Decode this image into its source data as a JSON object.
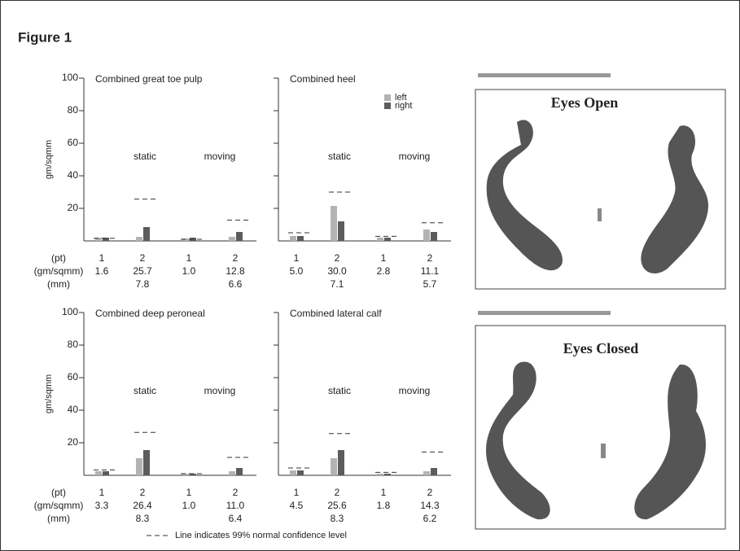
{
  "figure_title": "Figure 1",
  "row_labels": [
    "(pt)",
    "(gm/sqmm)",
    "(mm)"
  ],
  "y_label": "gm/sqmm",
  "note": "Line indicates 99% normal confidence level",
  "panels": [
    {
      "title": "Eyes Open"
    },
    {
      "title": "Eyes Closed"
    }
  ],
  "chart_data": [
    {
      "type": "bar",
      "title": "Combined great toe pulp",
      "group_labels": [
        "static",
        "moving"
      ],
      "categories": [
        "1",
        "2",
        "1",
        "2"
      ],
      "series": [
        {
          "name": "left",
          "color": "#b3b3b3",
          "values": [
            2,
            2.5,
            1.5,
            2.5
          ]
        },
        {
          "name": "right",
          "color": "#5c5c5c",
          "values": [
            2,
            8.5,
            2,
            5.5
          ]
        }
      ],
      "confidence_levels": [
        1.6,
        25.7,
        1.0,
        12.8
      ],
      "confidence_labels": [
        "1.6",
        "25.7",
        "1.0",
        "12.8"
      ],
      "mm": [
        null,
        7.8,
        null,
        6.6
      ],
      "ylim": [
        0,
        100
      ],
      "yticks": [
        20,
        40,
        60,
        80,
        100
      ],
      "show_tick_labels": true,
      "legend": false
    },
    {
      "type": "bar",
      "title": "Combined heel",
      "group_labels": [
        "static",
        "moving"
      ],
      "categories": [
        "1",
        "2",
        "1",
        "2"
      ],
      "series": [
        {
          "name": "left",
          "color": "#b3b3b3",
          "values": [
            3,
            21.5,
            2,
            7
          ]
        },
        {
          "name": "right",
          "color": "#5c5c5c",
          "values": [
            3,
            12,
            2,
            5.5
          ]
        }
      ],
      "confidence_levels": [
        5.0,
        30.0,
        2.8,
        11.1
      ],
      "confidence_labels": [
        "5.0",
        "30.0",
        "2.8",
        "11.1"
      ],
      "mm": [
        null,
        7.1,
        null,
        5.7
      ],
      "ylim": [
        0,
        100
      ],
      "yticks": [
        20,
        40,
        60,
        80,
        100
      ],
      "show_tick_labels": false,
      "legend": true
    },
    {
      "type": "bar",
      "title": "Combined deep peroneal",
      "group_labels": [
        "static",
        "moving"
      ],
      "categories": [
        "1",
        "2",
        "1",
        "2"
      ],
      "series": [
        {
          "name": "left",
          "color": "#b3b3b3",
          "values": [
            2.5,
            10.5,
            1,
            2.5
          ]
        },
        {
          "name": "right",
          "color": "#5c5c5c",
          "values": [
            2.5,
            15.5,
            1,
            4.5
          ]
        }
      ],
      "confidence_levels": [
        3.3,
        26.4,
        1.0,
        11.0
      ],
      "confidence_labels": [
        "3.3",
        "26.4",
        "1.0",
        "11.0"
      ],
      "mm": [
        null,
        8.3,
        null,
        6.4
      ],
      "ylim": [
        0,
        100
      ],
      "yticks": [
        20,
        40,
        60,
        80,
        100
      ],
      "show_tick_labels": true,
      "legend": false
    },
    {
      "type": "bar",
      "title": "Combined lateral calf",
      "group_labels": [
        "static",
        "moving"
      ],
      "categories": [
        "1",
        "2",
        "1",
        "2"
      ],
      "series": [
        {
          "name": "left",
          "color": "#b3b3b3",
          "values": [
            3,
            10.5,
            1,
            2.5
          ]
        },
        {
          "name": "right",
          "color": "#5c5c5c",
          "values": [
            3,
            15.5,
            1,
            4.5
          ]
        }
      ],
      "confidence_levels": [
        4.5,
        25.6,
        1.8,
        14.3
      ],
      "confidence_labels": [
        "4.5",
        "25.6",
        "1.8",
        "14.3"
      ],
      "mm": [
        null,
        8.3,
        null,
        6.2
      ],
      "ylim": [
        0,
        100
      ],
      "yticks": [
        20,
        40,
        60,
        80,
        100
      ],
      "show_tick_labels": false,
      "legend": false
    }
  ]
}
